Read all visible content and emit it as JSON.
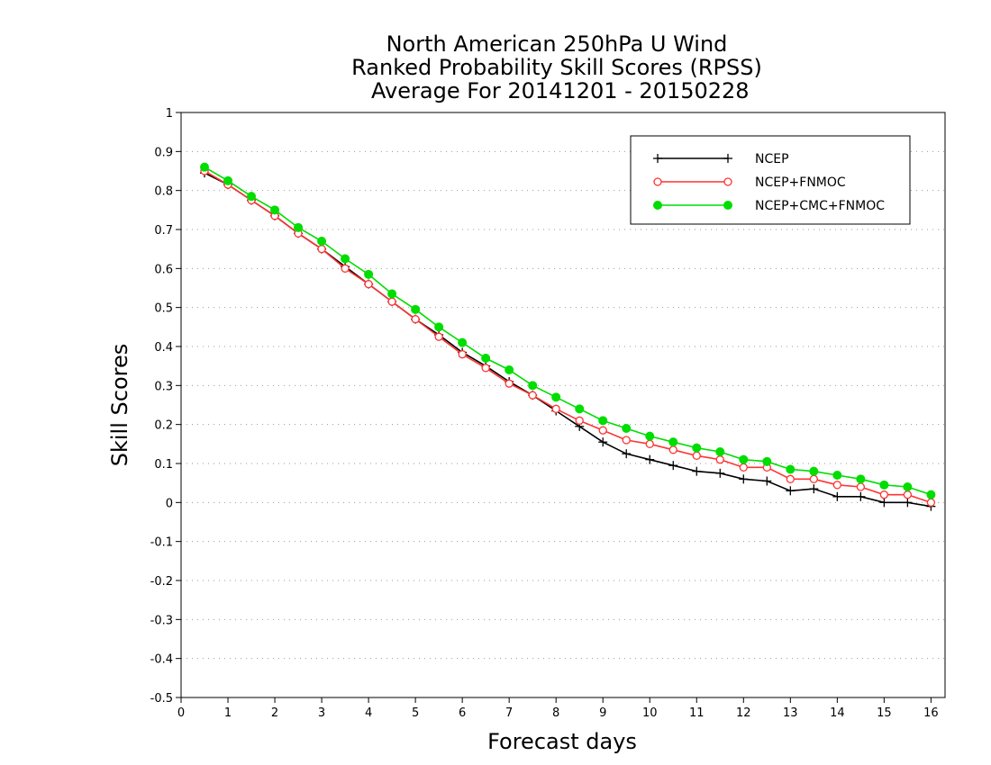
{
  "chart_data": {
    "type": "line",
    "title": [
      "North American 250hPa U Wind",
      "Ranked Probability Skill Scores (RPSS)",
      " Average For 20141201 - 20150228"
    ],
    "xlabel": "Forecast days",
    "ylabel": "Skill Scores",
    "xlim": [
      0,
      16.3
    ],
    "ylim": [
      -0.5,
      1
    ],
    "xticks": [
      0,
      1,
      2,
      3,
      4,
      5,
      6,
      7,
      8,
      9,
      10,
      11,
      12,
      13,
      14,
      15,
      16
    ],
    "yticks": [
      -0.5,
      -0.4,
      -0.3,
      -0.2,
      -0.1,
      0,
      0.1,
      0.2,
      0.3,
      0.4,
      0.5,
      0.6,
      0.7,
      0.8,
      0.9,
      1
    ],
    "ytick_labels": [
      "-0.5",
      "-0.4",
      "-0.3",
      "-0.2",
      "-0.1",
      "0",
      "0.1",
      "0.2",
      "0.3",
      "0.4",
      "0.5",
      "0.6",
      "0.7",
      "0.8",
      "0.9",
      "1"
    ],
    "grid": "dotted horizontal",
    "legend_position": "top-right",
    "x": [
      0.5,
      1,
      1.5,
      2,
      2.5,
      3,
      3.5,
      4,
      4.5,
      5,
      5.5,
      6,
      6.5,
      7,
      7.5,
      8,
      8.5,
      9,
      9.5,
      10,
      10.5,
      11,
      11.5,
      12,
      12.5,
      13,
      13.5,
      14,
      14.5,
      15,
      15.5,
      16
    ],
    "series": [
      {
        "name": "NCEP",
        "color": "#000000",
        "marker": "plus",
        "values": [
          0.845,
          0.815,
          0.775,
          0.735,
          0.69,
          0.65,
          0.605,
          0.56,
          0.515,
          0.47,
          0.43,
          0.385,
          0.35,
          0.31,
          0.275,
          0.235,
          0.195,
          0.155,
          0.125,
          0.11,
          0.095,
          0.08,
          0.075,
          0.06,
          0.055,
          0.03,
          0.035,
          0.015,
          0.015,
          0.0,
          0.0,
          -0.01
        ]
      },
      {
        "name": "NCEP+FNMOC",
        "color": "#ff3333",
        "marker": "open-circle",
        "values": [
          0.85,
          0.815,
          0.775,
          0.735,
          0.69,
          0.65,
          0.6,
          0.56,
          0.515,
          0.47,
          0.425,
          0.38,
          0.345,
          0.305,
          0.275,
          0.24,
          0.21,
          0.185,
          0.16,
          0.15,
          0.135,
          0.12,
          0.11,
          0.09,
          0.09,
          0.06,
          0.06,
          0.045,
          0.04,
          0.02,
          0.02,
          0.0
        ]
      },
      {
        "name": "NCEP+CMC+FNMOC",
        "color": "#00dd00",
        "marker": "filled-circle",
        "values": [
          0.86,
          0.825,
          0.785,
          0.75,
          0.705,
          0.67,
          0.625,
          0.585,
          0.535,
          0.495,
          0.45,
          0.41,
          0.37,
          0.34,
          0.3,
          0.27,
          0.24,
          0.21,
          0.19,
          0.17,
          0.155,
          0.14,
          0.13,
          0.11,
          0.105,
          0.085,
          0.08,
          0.07,
          0.06,
          0.045,
          0.04,
          0.02
        ]
      }
    ]
  }
}
